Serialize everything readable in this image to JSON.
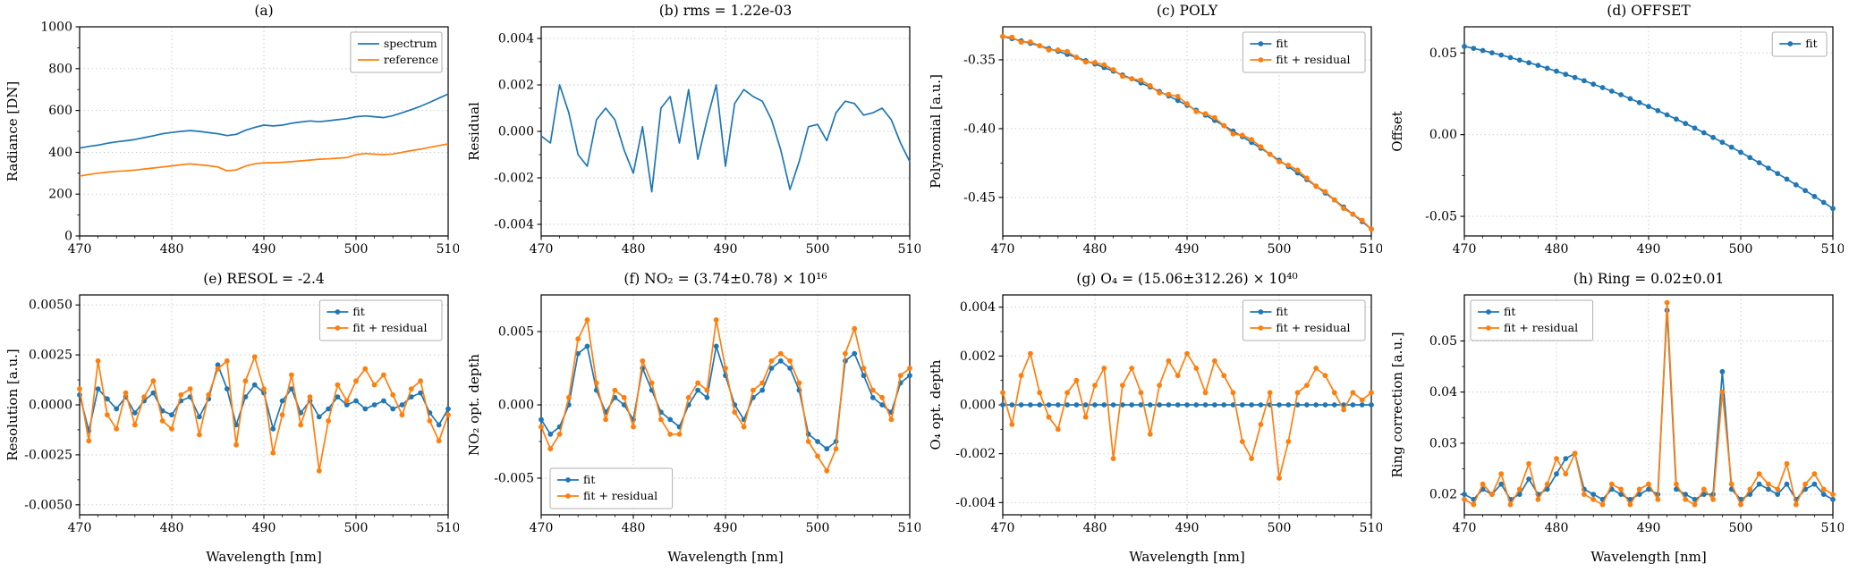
{
  "figure": {
    "background": "#ffffff",
    "colors": {
      "blue": "#1f77b4",
      "orange": "#ff7f0e"
    },
    "xlabel": "Wavelength [nm]",
    "xticks": [
      470,
      480,
      490,
      500,
      510
    ],
    "wavelength_nm": [
      470,
      471,
      472,
      473,
      474,
      475,
      476,
      477,
      478,
      479,
      480,
      481,
      482,
      483,
      484,
      485,
      486,
      487,
      488,
      489,
      490,
      491,
      492,
      493,
      494,
      495,
      496,
      497,
      498,
      499,
      500,
      501,
      502,
      503,
      504,
      505,
      506,
      507,
      508,
      509,
      510
    ]
  },
  "chart_data": [
    {
      "id": "a",
      "type": "line",
      "title": "(a)",
      "ylabel": "Radiance [DN]",
      "xlabel": null,
      "ylim": [
        0,
        1000
      ],
      "yticks": [
        0,
        200,
        400,
        600,
        800,
        1000
      ],
      "ytick_labels": [
        "0",
        "200",
        "400",
        "600",
        "800",
        "1000"
      ],
      "legend": "top-right",
      "series": [
        {
          "name": "spectrum",
          "color": "blue",
          "marker": false,
          "values": [
            420,
            428,
            434,
            443,
            450,
            455,
            461,
            470,
            479,
            489,
            495,
            500,
            504,
            500,
            494,
            489,
            480,
            486,
            505,
            519,
            530,
            526,
            530,
            539,
            545,
            550,
            546,
            551,
            556,
            561,
            570,
            574,
            570,
            566,
            575,
            589,
            604,
            620,
            639,
            659,
            679
          ]
        },
        {
          "name": "reference",
          "color": "orange",
          "marker": false,
          "values": [
            286,
            294,
            300,
            305,
            309,
            311,
            315,
            320,
            325,
            330,
            335,
            340,
            345,
            340,
            336,
            330,
            311,
            316,
            334,
            345,
            350,
            350,
            352,
            355,
            359,
            363,
            367,
            369,
            372,
            375,
            389,
            394,
            391,
            389,
            392,
            400,
            408,
            415,
            424,
            432,
            440
          ]
        }
      ]
    },
    {
      "id": "b",
      "type": "line",
      "title": "(b) rms = 1.22e-03",
      "ylabel": "Residual",
      "xlabel": null,
      "ylim": [
        -0.0045,
        0.0045
      ],
      "yticks": [
        -0.004,
        -0.002,
        0.0,
        0.002,
        0.004
      ],
      "ytick_labels": [
        "-0.004",
        "-0.002",
        "0.000",
        "0.002",
        "0.004"
      ],
      "legend": null,
      "series": [
        {
          "name": "residual",
          "color": "blue",
          "marker": false,
          "values": [
            -0.0002,
            -0.0005,
            0.002,
            0.0008,
            -0.001,
            -0.0015,
            0.0005,
            0.001,
            0.0005,
            -0.0008,
            -0.0018,
            0.0002,
            -0.0026,
            0.001,
            0.0015,
            -0.0005,
            0.0018,
            -0.0012,
            0.0005,
            0.002,
            -0.0015,
            0.0012,
            0.0018,
            0.0015,
            0.0013,
            0.0005,
            -0.0008,
            -0.0025,
            -0.0013,
            0.0002,
            0.0003,
            -0.0004,
            0.0008,
            0.0013,
            0.0012,
            0.0007,
            0.0008,
            0.001,
            0.0005,
            -0.0005,
            -0.0013
          ]
        }
      ]
    },
    {
      "id": "c",
      "type": "line",
      "title": "(c) POLY",
      "ylabel": "Polynomial [a.u.]",
      "xlabel": null,
      "ylim": [
        -0.478,
        -0.326
      ],
      "yticks": [
        -0.35,
        -0.4,
        -0.45
      ],
      "ytick_labels": [
        "-0.35",
        "-0.40",
        "-0.45"
      ],
      "legend": "top-right",
      "series": [
        {
          "name": "fit",
          "color": "blue",
          "marker": true,
          "values": [
            -0.333,
            -0.3346,
            -0.3362,
            -0.338,
            -0.3398,
            -0.3418,
            -0.3438,
            -0.346,
            -0.3482,
            -0.3506,
            -0.353,
            -0.3556,
            -0.3582,
            -0.361,
            -0.3638,
            -0.3668,
            -0.3698,
            -0.373,
            -0.3762,
            -0.3796,
            -0.383,
            -0.3866,
            -0.3902,
            -0.394,
            -0.3978,
            -0.4018,
            -0.4058,
            -0.41,
            -0.4142,
            -0.4186,
            -0.423,
            -0.4276,
            -0.4322,
            -0.437,
            -0.4418,
            -0.4468,
            -0.4518,
            -0.457,
            -0.4622,
            -0.4676,
            -0.473
          ]
        },
        {
          "name": "fit + residual",
          "color": "orange",
          "marker": true,
          "values": [
            -0.333,
            -0.3336,
            -0.3372,
            -0.337,
            -0.3398,
            -0.3428,
            -0.3428,
            -0.344,
            -0.3482,
            -0.3516,
            -0.352,
            -0.3536,
            -0.3572,
            -0.362,
            -0.3638,
            -0.3648,
            -0.3688,
            -0.374,
            -0.3752,
            -0.3766,
            -0.382,
            -0.3876,
            -0.3892,
            -0.392,
            -0.3978,
            -0.4038,
            -0.4048,
            -0.408,
            -0.4132,
            -0.4186,
            -0.424,
            -0.4266,
            -0.4302,
            -0.436,
            -0.4418,
            -0.4458,
            -0.4518,
            -0.458,
            -0.4622,
            -0.4666,
            -0.473
          ]
        }
      ]
    },
    {
      "id": "d",
      "type": "line",
      "title": "(d) OFFSET",
      "ylabel": "Offset",
      "xlabel": null,
      "ylim": [
        -0.062,
        0.066
      ],
      "yticks": [
        -0.05,
        0.0,
        0.05
      ],
      "ytick_labels": [
        "-0.05",
        "0.00",
        "0.05"
      ],
      "legend": "top-right",
      "series": [
        {
          "name": "fit",
          "color": "blue",
          "marker": true,
          "values": [
            0.054,
            0.0528,
            0.0515,
            0.0501,
            0.0487,
            0.0472,
            0.0456,
            0.044,
            0.0424,
            0.0406,
            0.0388,
            0.0369,
            0.035,
            0.033,
            0.0309,
            0.0288,
            0.0266,
            0.0244,
            0.022,
            0.0196,
            0.0172,
            0.0147,
            0.0121,
            0.0095,
            0.0068,
            0.004,
            0.0012,
            -0.0017,
            -0.0047,
            -0.0077,
            -0.0108,
            -0.014,
            -0.0172,
            -0.0205,
            -0.0238,
            -0.0272,
            -0.0307,
            -0.0342,
            -0.0378,
            -0.0415,
            -0.0452
          ]
        }
      ]
    },
    {
      "id": "e",
      "type": "line",
      "title": "(e) RESOL = -2.4",
      "ylabel": "Resolution [a.u.]",
      "xlabel": "Wavelength [nm]",
      "ylim": [
        -0.0055,
        0.0055
      ],
      "yticks": [
        -0.005,
        -0.0025,
        0.0,
        0.0025,
        0.005
      ],
      "ytick_labels": [
        "-0.0050",
        "-0.0025",
        "0.0000",
        "0.0025",
        "0.0050"
      ],
      "legend": "top-right",
      "series": [
        {
          "name": "fit",
          "color": "blue",
          "marker": true,
          "values": [
            0.0005,
            -0.0013,
            0.0008,
            0.0003,
            -0.0002,
            0.0004,
            -0.0004,
            0.0002,
            0.0006,
            -0.0003,
            -0.0005,
            0.0002,
            0.0004,
            -0.0006,
            0.0003,
            0.002,
            0.0008,
            -0.001,
            0.0004,
            0.001,
            0.0006,
            -0.0012,
            0.0002,
            0.0008,
            -0.0004,
            0.0002,
            -0.0006,
            -0.0002,
            0.0004,
            0.0,
            0.0002,
            -0.0002,
            0.0,
            0.0002,
            -0.0002,
            0.0,
            0.0004,
            0.0006,
            -0.0004,
            -0.001,
            -0.0002
          ]
        },
        {
          "name": "fit + residual",
          "color": "orange",
          "marker": true,
          "values": [
            0.0008,
            -0.0018,
            0.0022,
            -0.0005,
            -0.0012,
            0.0006,
            -0.001,
            0.0004,
            0.0012,
            -0.0008,
            -0.0012,
            0.0005,
            0.0008,
            -0.0015,
            0.0005,
            0.0018,
            0.0022,
            -0.002,
            0.0012,
            0.0024,
            0.0008,
            -0.0024,
            -0.0005,
            0.0015,
            -0.001,
            0.0004,
            -0.0033,
            -0.0008,
            0.001,
            0.0002,
            0.0012,
            0.0018,
            0.001,
            0.0015,
            0.0005,
            -0.0005,
            0.0008,
            0.0012,
            -0.0008,
            -0.0018,
            -0.0005
          ]
        }
      ]
    },
    {
      "id": "f",
      "type": "line",
      "title": "(f) NO₂ = (3.74±0.78) × 10¹⁶",
      "ylabel": "NO₂ opt. depth",
      "xlabel": "Wavelength [nm]",
      "ylim": [
        -0.0075,
        0.0075
      ],
      "yticks": [
        -0.005,
        0.0,
        0.005
      ],
      "ytick_labels": [
        "-0.005",
        "0.000",
        "0.005"
      ],
      "legend": "bottom-left",
      "series": [
        {
          "name": "fit",
          "color": "blue",
          "marker": true,
          "values": [
            -0.001,
            -0.002,
            -0.0015,
            0.0,
            0.0035,
            0.004,
            0.001,
            -0.0005,
            0.0005,
            0.0,
            -0.001,
            0.0025,
            0.001,
            -0.0005,
            -0.001,
            -0.0015,
            0.0,
            0.001,
            0.0005,
            0.004,
            0.002,
            0.0,
            -0.001,
            0.0005,
            0.001,
            0.0025,
            0.003,
            0.0025,
            0.001,
            -0.002,
            -0.0025,
            -0.003,
            -0.0025,
            0.003,
            0.0035,
            0.002,
            0.0005,
            0.0,
            -0.0005,
            0.0015,
            0.002
          ]
        },
        {
          "name": "fit + residual",
          "color": "orange",
          "marker": true,
          "values": [
            -0.0015,
            -0.003,
            -0.002,
            0.0005,
            0.0045,
            0.0058,
            0.0015,
            -0.001,
            0.001,
            0.0005,
            -0.0015,
            0.003,
            0.0015,
            -0.001,
            -0.002,
            -0.002,
            0.0005,
            0.0015,
            0.001,
            0.0058,
            0.0025,
            -0.0005,
            -0.0015,
            0.001,
            0.0015,
            0.003,
            0.0035,
            0.003,
            0.0015,
            -0.0025,
            -0.0035,
            -0.0045,
            -0.003,
            0.0035,
            0.0052,
            0.0025,
            0.001,
            0.0005,
            -0.001,
            0.002,
            0.0025
          ]
        }
      ]
    },
    {
      "id": "g",
      "type": "line",
      "title": "(g) O₄ = (15.06±312.26) × 10⁴⁰",
      "ylabel": "O₄ opt. depth",
      "xlabel": "Wavelength [nm]",
      "ylim": [
        -0.0045,
        0.0045
      ],
      "yticks": [
        -0.004,
        -0.002,
        0.0,
        0.002,
        0.004
      ],
      "ytick_labels": [
        "-0.004",
        "-0.002",
        "0.000",
        "0.002",
        "0.004"
      ],
      "legend": "top-right",
      "series": [
        {
          "name": "fit",
          "color": "blue",
          "marker": true,
          "values": [
            0,
            0,
            0,
            0,
            0,
            0,
            0,
            0,
            0,
            0,
            0,
            0,
            0,
            0,
            0,
            0,
            0,
            0,
            0,
            0,
            0,
            0,
            0,
            0,
            0,
            0,
            0,
            0,
            0,
            0,
            0,
            0,
            0,
            0,
            0,
            0,
            0,
            0,
            0,
            0,
            0
          ]
        },
        {
          "name": "fit + residual",
          "color": "orange",
          "marker": true,
          "values": [
            0.0005,
            -0.0008,
            0.0012,
            0.0021,
            0.0005,
            -0.0005,
            -0.001,
            0.0005,
            0.001,
            -0.0005,
            0.0008,
            0.0015,
            -0.0022,
            0.0008,
            0.0015,
            0.0005,
            -0.0012,
            0.0008,
            0.0018,
            0.0012,
            0.0021,
            0.0015,
            0.0005,
            0.0018,
            0.0012,
            0.0005,
            -0.0015,
            -0.0022,
            -0.0008,
            0.0005,
            -0.003,
            -0.0015,
            0.0005,
            0.0008,
            0.0015,
            0.0012,
            0.0005,
            -0.0002,
            0.0005,
            0.0002,
            0.0005
          ]
        }
      ]
    },
    {
      "id": "h",
      "type": "line",
      "title": "(h) Ring = 0.02±0.01",
      "ylabel": "Ring correction [a.u.]",
      "xlabel": "Wavelength [nm]",
      "ylim": [
        0.016,
        0.059
      ],
      "yticks": [
        0.02,
        0.03,
        0.04,
        0.05
      ],
      "ytick_labels": [
        "0.02",
        "0.03",
        "0.04",
        "0.05"
      ],
      "legend": "top-left",
      "series": [
        {
          "name": "fit",
          "color": "blue",
          "marker": true,
          "values": [
            0.02,
            0.019,
            0.021,
            0.02,
            0.022,
            0.019,
            0.02,
            0.023,
            0.02,
            0.021,
            0.024,
            0.027,
            0.028,
            0.021,
            0.02,
            0.019,
            0.021,
            0.02,
            0.019,
            0.02,
            0.021,
            0.02,
            0.056,
            0.021,
            0.02,
            0.019,
            0.02,
            0.02,
            0.044,
            0.021,
            0.019,
            0.02,
            0.022,
            0.021,
            0.02,
            0.022,
            0.019,
            0.021,
            0.022,
            0.02,
            0.019
          ]
        },
        {
          "name": "fit + residual",
          "color": "orange",
          "marker": true,
          "values": [
            0.019,
            0.018,
            0.022,
            0.02,
            0.024,
            0.018,
            0.021,
            0.026,
            0.019,
            0.022,
            0.027,
            0.024,
            0.028,
            0.02,
            0.019,
            0.018,
            0.022,
            0.021,
            0.018,
            0.021,
            0.022,
            0.019,
            0.0575,
            0.022,
            0.019,
            0.018,
            0.021,
            0.019,
            0.04,
            0.022,
            0.018,
            0.021,
            0.024,
            0.022,
            0.021,
            0.026,
            0.018,
            0.022,
            0.024,
            0.021,
            0.02
          ]
        }
      ]
    }
  ]
}
